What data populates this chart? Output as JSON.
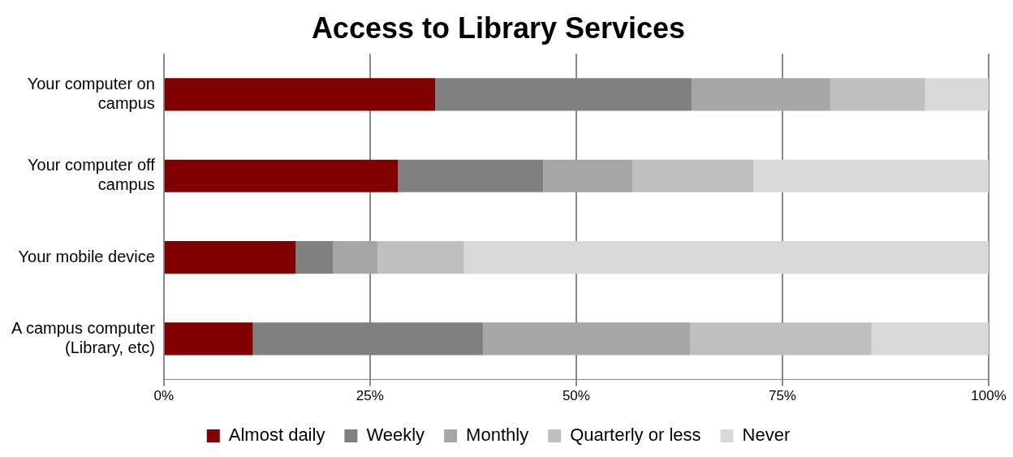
{
  "chart_data": {
    "type": "bar",
    "title": "Access to Library Services",
    "orientation": "horizontal",
    "stacked": true,
    "categories": [
      "Your computer on campus",
      "Your computer off campus",
      "Your mobile device",
      "A campus computer (Library, etc)"
    ],
    "series": [
      {
        "name": "Almost daily",
        "color": "#800000",
        "values": [
          32.9,
          28.4,
          16.0,
          10.8
        ]
      },
      {
        "name": "Weekly",
        "color": "#808080",
        "values": [
          31.1,
          17.6,
          4.5,
          27.9
        ]
      },
      {
        "name": "Monthly",
        "color": "#a6a6a6",
        "values": [
          16.8,
          10.8,
          5.4,
          25.1
        ]
      },
      {
        "name": "Quarterly or less",
        "color": "#bfbfbf",
        "values": [
          11.5,
          14.7,
          10.5,
          22.0
        ]
      },
      {
        "name": "Never",
        "color": "#d9d9d9",
        "values": [
          7.7,
          28.5,
          63.6,
          14.2
        ]
      }
    ],
    "xlim": [
      0,
      100
    ],
    "xticks": [
      {
        "value": 0,
        "label": "0%"
      },
      {
        "value": 25,
        "label": "25%"
      },
      {
        "value": 50,
        "label": "50%"
      },
      {
        "value": 75,
        "label": "75%"
      },
      {
        "value": 100,
        "label": "100%"
      }
    ],
    "grid": "x",
    "legend": "bottom"
  }
}
